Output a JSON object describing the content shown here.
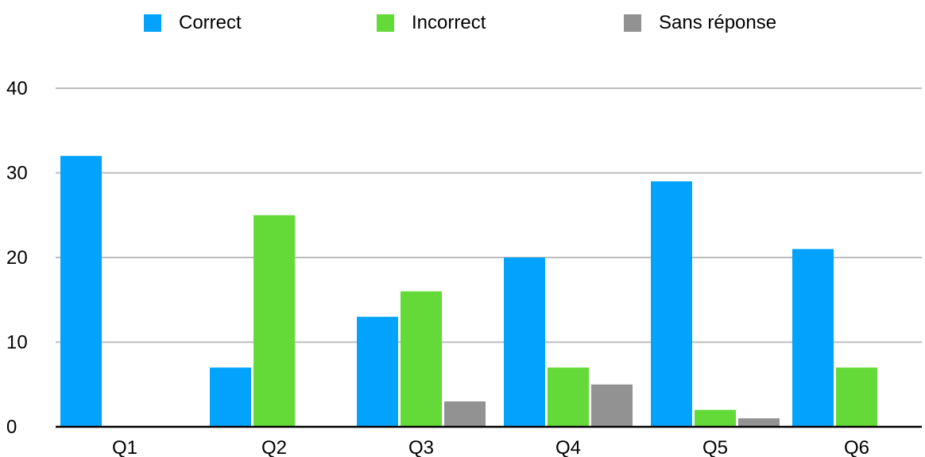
{
  "chart_data": {
    "type": "bar",
    "categories": [
      "Q1",
      "Q2",
      "Q3",
      "Q4",
      "Q5",
      "Q6"
    ],
    "series": [
      {
        "name": "Correct",
        "color": "#03A2FC",
        "values": [
          32,
          7,
          13,
          20,
          29,
          21
        ]
      },
      {
        "name": "Incorrect",
        "color": "#63DA38",
        "values": [
          0,
          25,
          16,
          7,
          2,
          7
        ]
      },
      {
        "name": "Sans réponse",
        "color": "#929292",
        "values": [
          0,
          0,
          3,
          5,
          1,
          0
        ]
      }
    ],
    "title": "",
    "xlabel": "",
    "ylabel": "",
    "ylim": [
      0,
      40
    ],
    "yticks": [
      "0",
      "10",
      "20",
      "30",
      "40"
    ],
    "grid": true,
    "legend_position": "top"
  },
  "colors": {
    "gridline": "#BDBDBD",
    "axis": "#000000"
  }
}
